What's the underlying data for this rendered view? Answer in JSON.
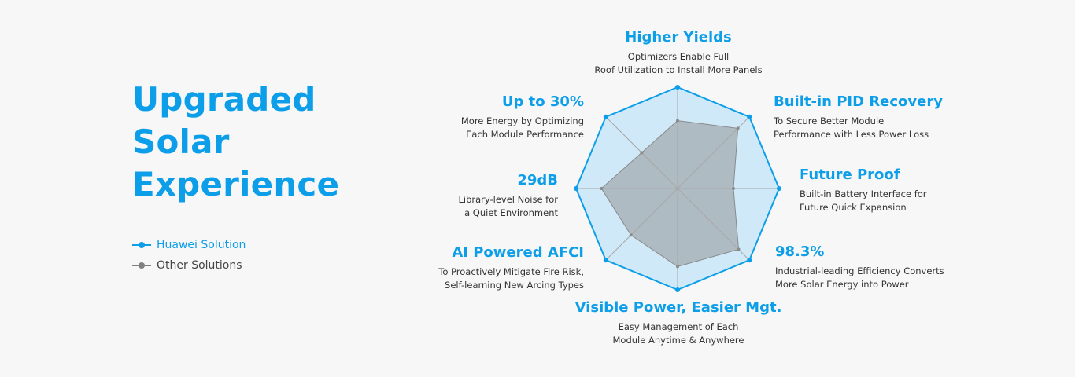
{
  "headline": [
    "Upgraded",
    "Solar",
    "Experience"
  ],
  "legend": {
    "huawei_label": "Huawei Solution",
    "other_label": "Other Solutions"
  },
  "colors": {
    "accent": "#0c9ee8",
    "huawei_fill": "#cfe9f8",
    "other_fill": "#a9b3ba",
    "other_line": "#8a8a8a",
    "spoke": "#a7a7a7"
  },
  "features": [
    {
      "title": "Higher Yields",
      "desc": [
        "Optimizers Enable Full",
        "Roof Utilization to Install More Panels"
      ]
    },
    {
      "title": "Built-in PID Recovery",
      "desc": [
        "To Secure Better Module",
        "Performance with Less Power Loss"
      ]
    },
    {
      "title": "Future Proof",
      "desc": [
        "Built-in Battery Interface for",
        "Future Quick Expansion"
      ]
    },
    {
      "title": "98.3%",
      "desc": [
        "Industrial-leading Efficiency Converts",
        "More Solar Energy into Power"
      ]
    },
    {
      "title": "Visible Power, Easier Mgt.",
      "desc": [
        "Easy Management of Each",
        "Module Anytime & Anywhere"
      ]
    },
    {
      "title": "AI Powered AFCI",
      "desc": [
        "To Proactively Mitigate Fire Risk,",
        "Self-learning New Arcing Types"
      ]
    },
    {
      "title": "29dB",
      "desc": [
        "Library-level Noise for",
        "a Quiet Environment"
      ]
    },
    {
      "title": "Up to 30%",
      "desc": [
        "More Energy by Optimizing",
        "Each Module Performance"
      ]
    }
  ],
  "chart_data": {
    "type": "radar",
    "categories": [
      "Higher Yields",
      "Built-in PID Recovery",
      "Future Proof",
      "98.3%",
      "Visible Power, Easier Mgt.",
      "AI Powered AFCI",
      "29dB",
      "Up to 30%"
    ],
    "rmax": 1.0,
    "grid": false,
    "legend_position": "left",
    "series": [
      {
        "name": "Huawei Solution",
        "values": [
          1.0,
          1.0,
          1.0,
          1.0,
          1.0,
          1.0,
          1.0,
          1.0
        ]
      },
      {
        "name": "Other Solutions",
        "values": [
          0.67,
          0.84,
          0.55,
          0.85,
          0.77,
          0.65,
          0.75,
          0.5
        ]
      }
    ]
  }
}
